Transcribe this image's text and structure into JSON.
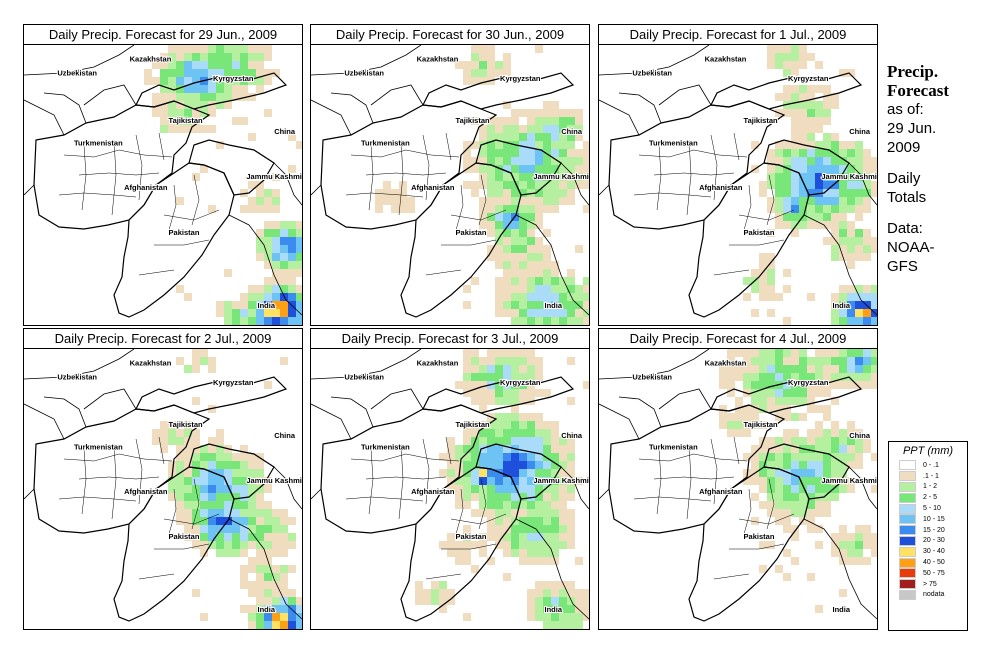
{
  "panels": [
    {
      "title": "Daily Precip. Forecast for  29 Jun., 2009",
      "seed": 11,
      "profile": "a"
    },
    {
      "title": "Daily Precip. Forecast for  30 Jun., 2009",
      "seed": 23,
      "profile": "b"
    },
    {
      "title": "Daily Precip. Forecast for  1 Jul., 2009",
      "seed": 37,
      "profile": "c"
    },
    {
      "title": "Daily Precip. Forecast for  2 Jul., 2009",
      "seed": 41,
      "profile": "d"
    },
    {
      "title": "Daily Precip. Forecast for  3 Jul., 2009",
      "seed": 53,
      "profile": "e"
    },
    {
      "title": "Daily Precip. Forecast for  4 Jul., 2009",
      "seed": 67,
      "profile": "f"
    }
  ],
  "map_labels": {
    "kazakhstan": "Kazakhstan",
    "uzbekistan": "Uzbekistan",
    "kyrgyzstan": "Kyrgyzstan",
    "tajikistan": "Tajikistan",
    "turkmenistan": "Turkmenistan",
    "china": "China",
    "afghanistan": "Afghanistan",
    "jammu_kashmir": "Jammu Kashmir",
    "pakistan": "Pakistan",
    "india": "India"
  },
  "sidebar": {
    "title_line1": "Precip.",
    "title_line2": "Forecast",
    "asof_line1": "as of:",
    "asof_line2": "29 Jun.",
    "asof_line3": "2009",
    "totals_line1": "Daily",
    "totals_line2": "Totals",
    "data_line1": "Data:",
    "data_line2": "NOAA-",
    "data_line3": "GFS"
  },
  "legend": {
    "title": "PPT (mm)",
    "items": [
      {
        "label": "0 - .1",
        "color": "#ffffff"
      },
      {
        "label": ".1 - 1",
        "color": "#f0dcbe"
      },
      {
        "label": "1 - 2",
        "color": "#b4f0a0"
      },
      {
        "label": "2 - 5",
        "color": "#78e678"
      },
      {
        "label": "5 - 10",
        "color": "#aadcfa"
      },
      {
        "label": "10 - 15",
        "color": "#6ec3f5"
      },
      {
        "label": "15 - 20",
        "color": "#3c8cf0"
      },
      {
        "label": "20 - 30",
        "color": "#1e50dc"
      },
      {
        "label": "30 - 40",
        "color": "#ffe164"
      },
      {
        "label": "40 - 50",
        "color": "#ffa014"
      },
      {
        "label": "50 - 75",
        "color": "#e63c0a"
      },
      {
        "label": "> 75",
        "color": "#a01e1e"
      },
      {
        "label": "nodata",
        "color": "#c8c8c8"
      }
    ]
  }
}
